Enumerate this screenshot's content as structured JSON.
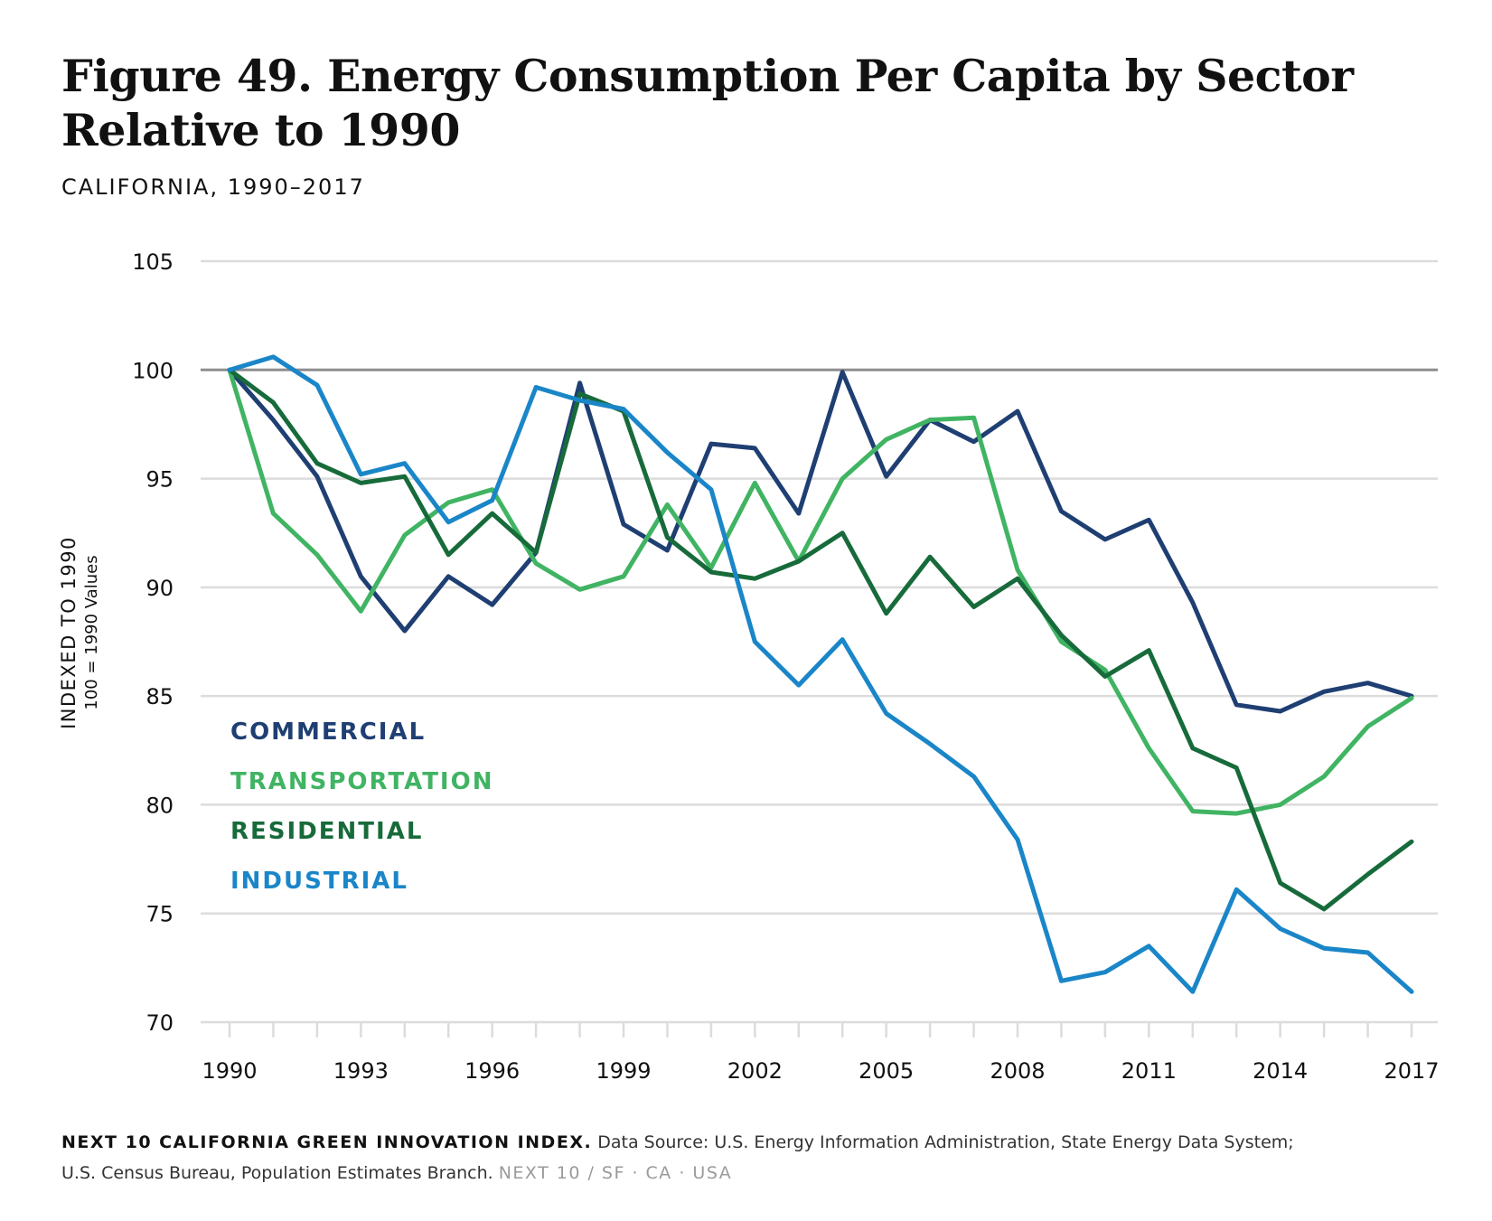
{
  "title": "Figure 49. Energy Consumption Per Capita by Sector Relative to 1990",
  "subtitle": "CALIFORNIA, 1990–2017",
  "footer": {
    "brand": "NEXT 10 CALIFORNIA GREEN INNOVATION INDEX.",
    "source_line1": "Data Source: U.S. Energy Information Administration, State Energy Data System;",
    "source_line2": "U.S. Census Bureau, Population Estimates Branch.",
    "credit": "NEXT 10  /  SF · CA · USA"
  },
  "colors": {
    "commercial": "#1f3f73",
    "transportation": "#40b463",
    "residential": "#176b3a",
    "industrial": "#1a86c8",
    "gridline": "#dcdcdc",
    "baseline": "#8e8e8e"
  },
  "chart_data": {
    "type": "line",
    "title": "Figure 49. Energy Consumption Per Capita by Sector Relative to 1990",
    "subtitle": "CALIFORNIA, 1990–2017",
    "xlabel": "",
    "ylabel": "INDEXED TO 1990",
    "ylabel_sub": "100 = 1990 Values",
    "ylim": [
      70,
      105
    ],
    "yticks": [
      70,
      75,
      80,
      85,
      90,
      95,
      100,
      105
    ],
    "xlim": [
      1990,
      2017
    ],
    "xticks": [
      "1990",
      "1993",
      "1996",
      "1999",
      "2002",
      "2005",
      "2008",
      "2011",
      "2014",
      "2017"
    ],
    "reference_line": 100,
    "grid": true,
    "legend_position": "left",
    "x": [
      1990,
      1991,
      1992,
      1993,
      1994,
      1995,
      1996,
      1997,
      1998,
      1999,
      2000,
      2001,
      2002,
      2003,
      2004,
      2005,
      2006,
      2007,
      2008,
      2009,
      2010,
      2011,
      2012,
      2013,
      2014,
      2015,
      2016,
      2017
    ],
    "series": [
      {
        "name": "COMMERCIAL",
        "color_key": "commercial",
        "values": [
          100,
          97.7,
          95.1,
          90.5,
          88.0,
          90.5,
          89.2,
          91.6,
          99.4,
          92.9,
          91.7,
          96.6,
          96.4,
          93.4,
          99.9,
          95.1,
          97.7,
          96.7,
          98.1,
          93.5,
          92.2,
          93.1,
          89.3,
          84.6,
          84.3,
          85.2,
          85.6,
          85.0
        ]
      },
      {
        "name": "TRANSPORTATION",
        "color_key": "transportation",
        "values": [
          100,
          93.4,
          91.5,
          88.9,
          92.4,
          93.9,
          94.5,
          91.1,
          89.9,
          90.5,
          93.8,
          90.9,
          94.8,
          91.2,
          95.0,
          96.8,
          97.7,
          97.8,
          90.8,
          87.5,
          86.2,
          82.6,
          79.7,
          79.6,
          80.0,
          81.3,
          83.6,
          84.9
        ]
      },
      {
        "name": "RESIDENTIAL",
        "color_key": "residential",
        "values": [
          100,
          98.5,
          95.7,
          94.8,
          95.1,
          91.5,
          93.4,
          91.6,
          98.9,
          98.1,
          92.3,
          90.7,
          90.4,
          91.2,
          92.5,
          88.8,
          91.4,
          89.1,
          90.4,
          87.8,
          85.9,
          87.1,
          82.6,
          81.7,
          76.4,
          75.2,
          76.8,
          78.3
        ]
      },
      {
        "name": "INDUSTRIAL",
        "color_key": "industrial",
        "values": [
          100,
          100.6,
          99.3,
          95.2,
          95.7,
          93.0,
          94.0,
          99.2,
          98.6,
          98.2,
          96.2,
          94.5,
          87.5,
          85.5,
          87.6,
          84.2,
          82.8,
          81.3,
          78.4,
          71.9,
          72.3,
          73.5,
          71.4,
          76.1,
          74.3,
          73.4,
          73.2,
          71.4
        ]
      }
    ]
  }
}
